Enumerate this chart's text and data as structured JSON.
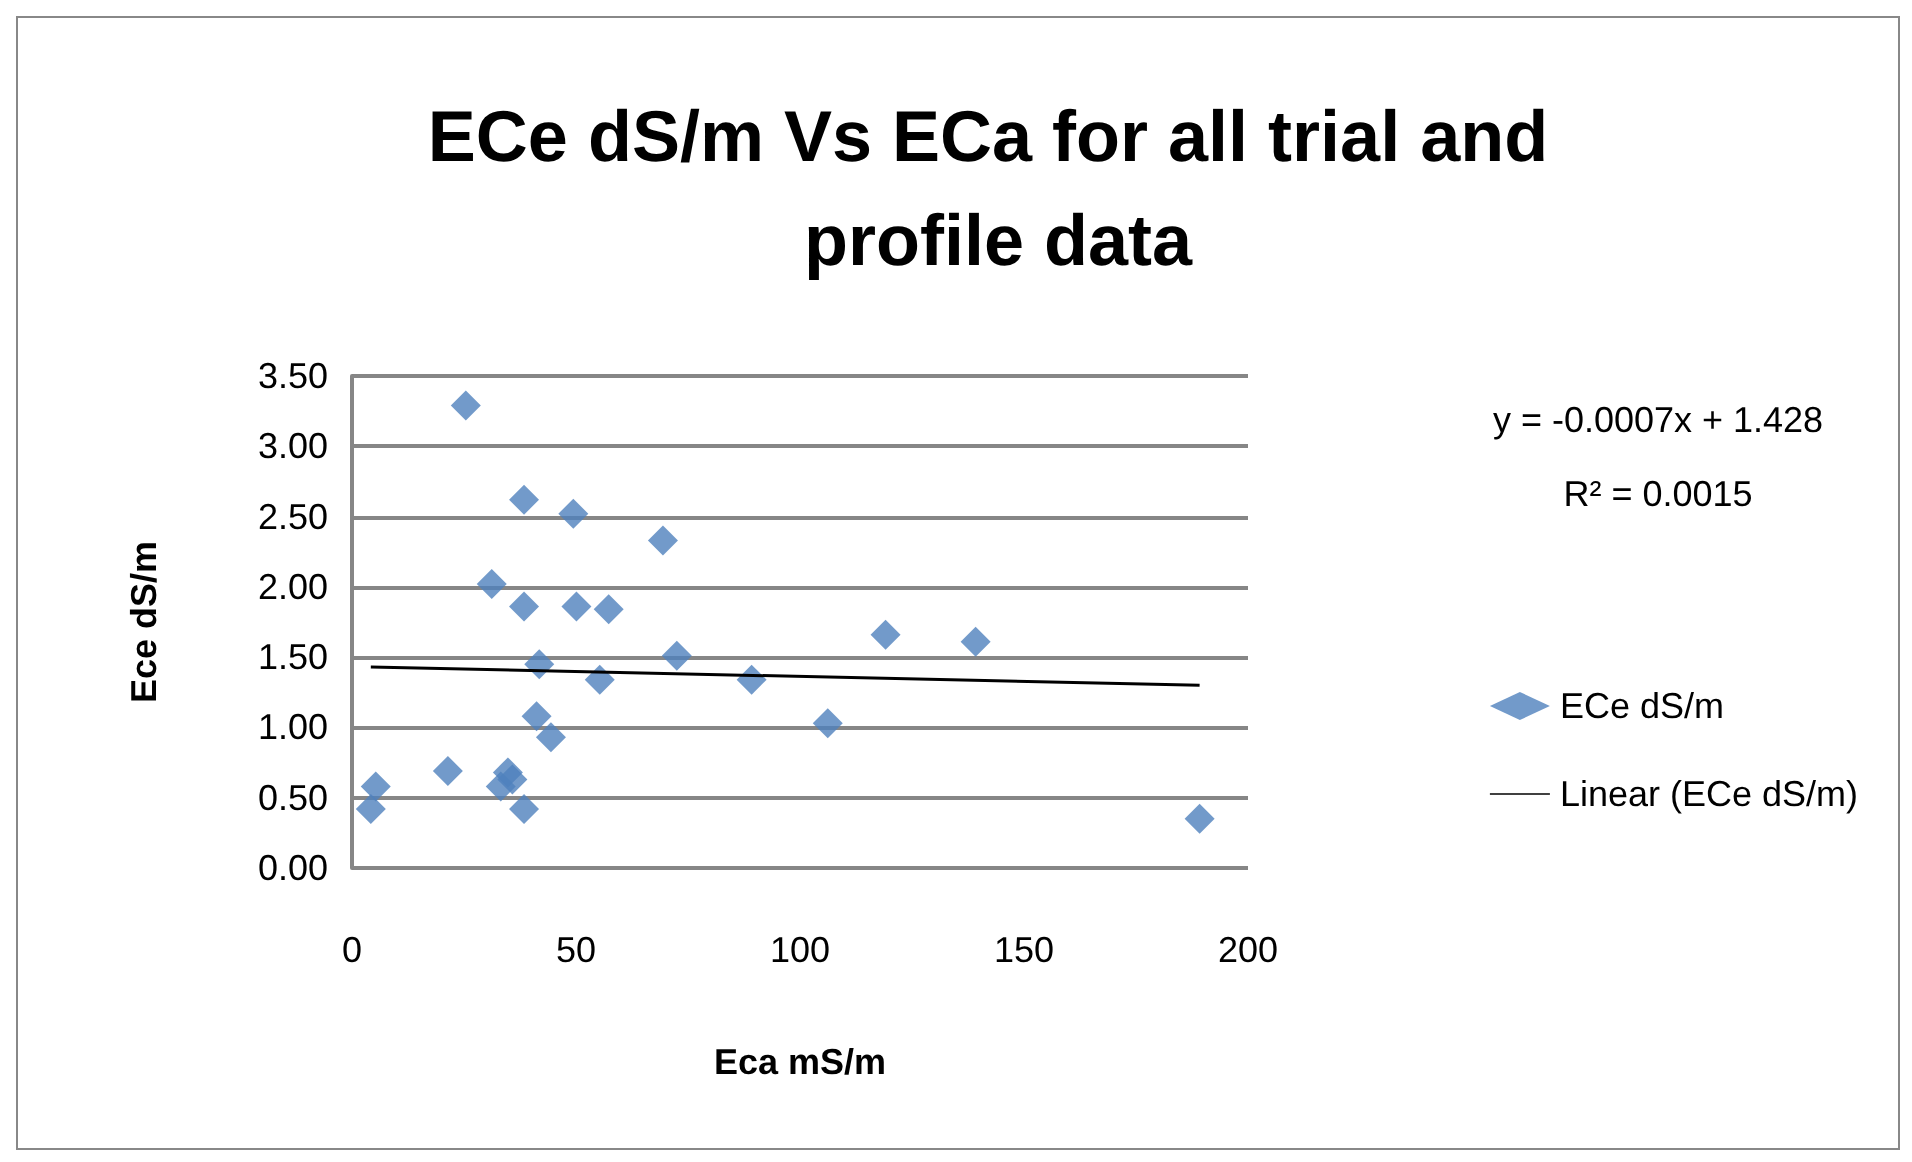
{
  "chart_data": {
    "type": "scatter",
    "title": "ECe dS/m Vs ECa for all trial and profile data",
    "xlabel": "Eca mS/m",
    "ylabel": "Ece dS/m",
    "annotations": [
      "y = -0.0007x + 1.428",
      "R² = 0.0015"
    ],
    "series": [
      {
        "name": "ECe dS/m",
        "color": "#4f81bd",
        "marker": "diamond",
        "x": [
          25.4,
          38.4,
          49.4,
          69.4,
          31.2,
          38.4,
          50.1,
          57.3,
          41.8,
          72.5,
          55.3,
          89.2,
          41.2,
          44.4,
          21.4,
          5.3,
          4.2,
          34.8,
          33.2,
          35.8,
          38.4,
          119.1,
          139.2,
          106.2,
          189.2
        ],
        "values": [
          3.29,
          2.62,
          2.52,
          2.33,
          2.02,
          1.86,
          1.86,
          1.84,
          1.45,
          1.51,
          1.34,
          1.34,
          1.08,
          0.93,
          0.69,
          0.58,
          0.42,
          0.68,
          0.58,
          0.63,
          0.42,
          1.66,
          1.61,
          1.03,
          0.35
        ]
      },
      {
        "name": "Linear (ECe dS/m)",
        "type": "line",
        "color": "#000000",
        "marker": "none",
        "line_style": "solid",
        "x": [
          4.2,
          189.2
        ],
        "values": [
          1.43,
          1.3
        ]
      }
    ],
    "xlim": [
      0,
      200
    ],
    "xticks": [
      0,
      50,
      100,
      150,
      200
    ],
    "ylim": [
      0,
      3.5
    ],
    "yticks": [
      {
        "value": 0,
        "label": "0.00"
      },
      {
        "value": 0.5,
        "label": "0.50"
      },
      {
        "value": 1,
        "label": "1.00"
      },
      {
        "value": 1.5,
        "label": "1.50"
      },
      {
        "value": 2,
        "label": "2.00"
      },
      {
        "value": 2.5,
        "label": "2.50"
      },
      {
        "value": 3,
        "label": "3.00"
      },
      {
        "value": 3.5,
        "label": "3.50"
      }
    ],
    "grid": "y",
    "legend": "right"
  }
}
